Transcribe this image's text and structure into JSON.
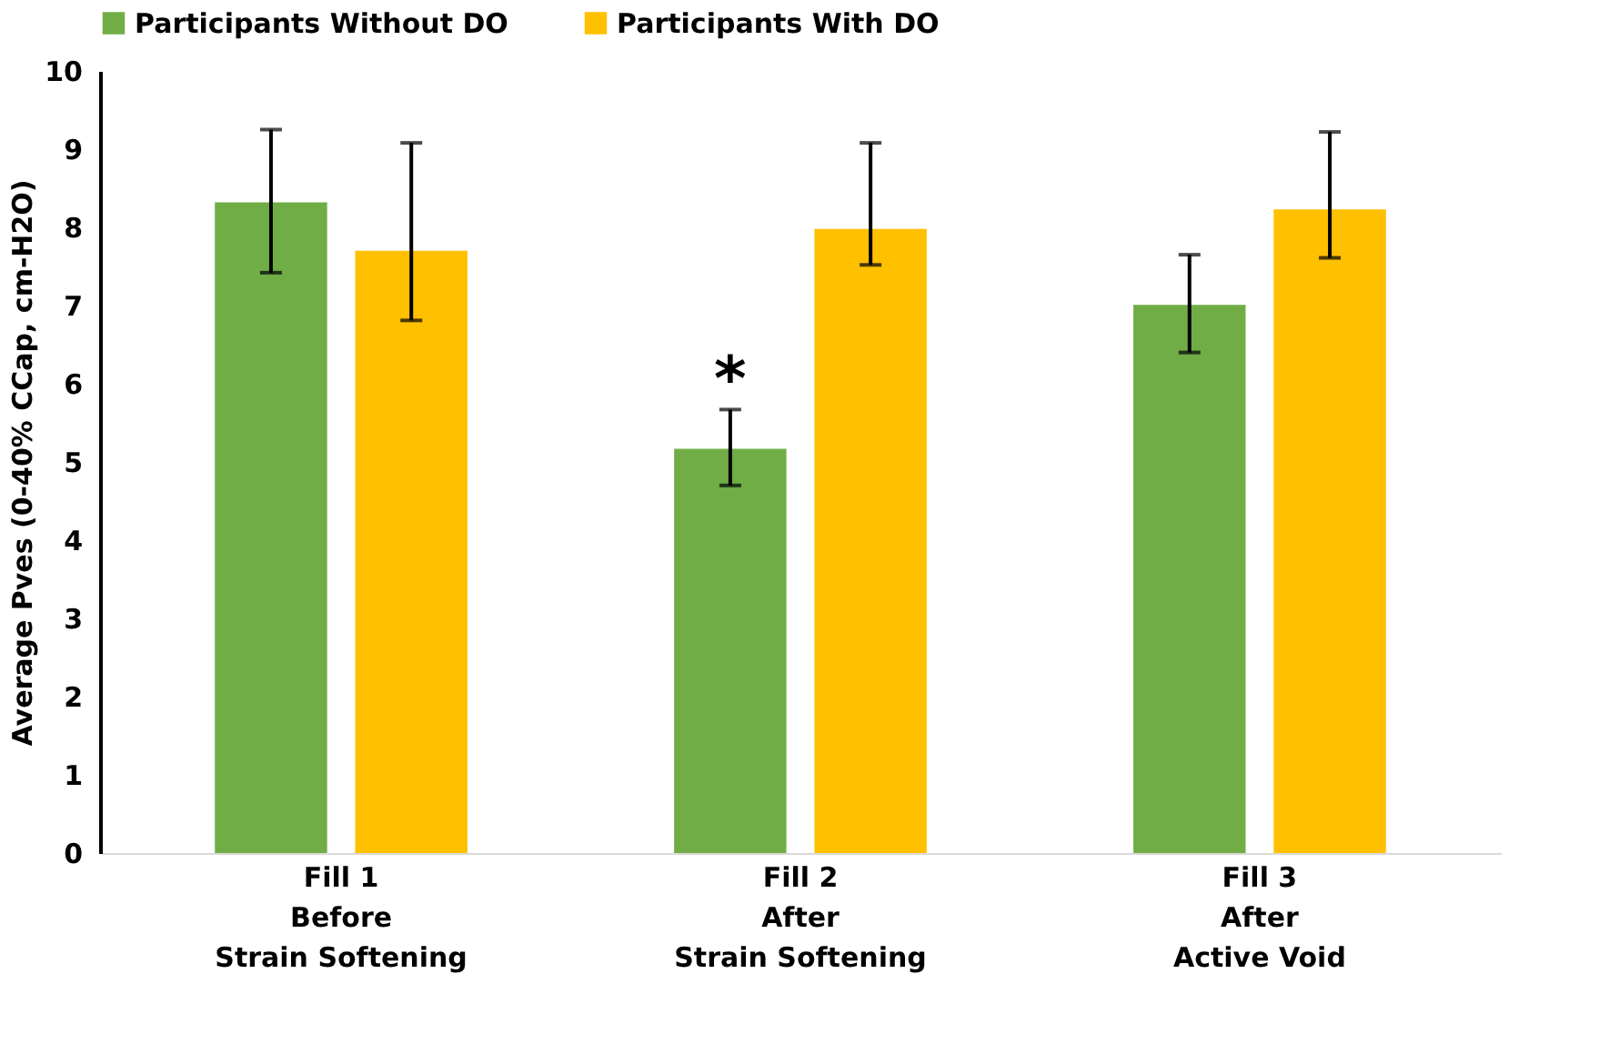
{
  "chart_data": {
    "type": "bar",
    "ylabel": "Average Pves (0-40% CCap, cm-H2O)",
    "categories": [
      "Fill 1\nBefore\nStrain Softening",
      "Fill 2\nAfter\nStrain Softening",
      "Fill 3\nAfter\nActive Void"
    ],
    "series": [
      {
        "name": "Participants Without DO",
        "color": "#70ad47",
        "values": [
          8.32,
          5.17,
          7.01
        ],
        "errors": [
          [
            7.42,
            9.25
          ],
          [
            4.7,
            5.67
          ],
          [
            6.4,
            7.65
          ]
        ]
      },
      {
        "name": "Participants With DO",
        "color": "#ffc000",
        "values": [
          7.7,
          7.98,
          8.23
        ],
        "errors": [
          [
            6.81,
            9.08
          ],
          [
            7.52,
            9.08
          ],
          [
            7.61,
            9.22
          ]
        ]
      }
    ],
    "ylim": [
      0,
      10
    ],
    "yticks": [
      0,
      1,
      2,
      3,
      4,
      5,
      6,
      7,
      8,
      9,
      10
    ],
    "grid": false,
    "legend": "top",
    "annotations": [
      "*"
    ]
  }
}
